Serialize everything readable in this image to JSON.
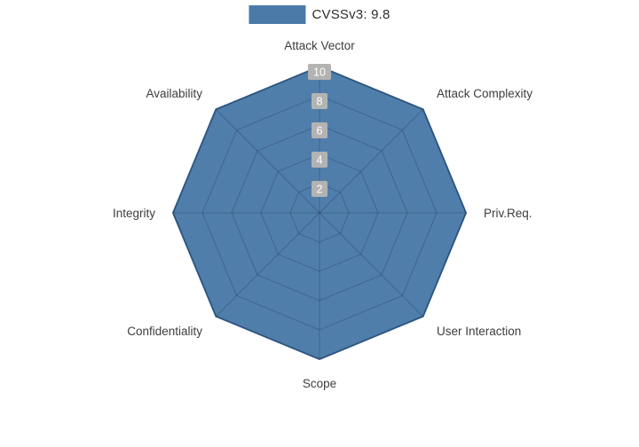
{
  "legend": {
    "label": "CVSSv3: 9.8"
  },
  "colors": {
    "fill": "#4a7aa8",
    "stroke": "#35618f",
    "grid": "#c9c9c9",
    "inner_grid": "rgba(25,45,75,0.30)",
    "tick_bg": "#b3b3b3",
    "tick_text": "#ffffff",
    "label_text": "#3d3d3d"
  },
  "chart_data": {
    "type": "radar",
    "title": "",
    "legend_entries": [
      "CVSSv3: 9.8"
    ],
    "legend_position": "top-center",
    "categories": [
      "Attack Vector",
      "Attack Complexity",
      "Priv.Req.",
      "User Interaction",
      "Scope",
      "Confidentiality",
      "Integrity",
      "Availability"
    ],
    "series": [
      {
        "name": "CVSSv3: 9.8",
        "values": [
          10,
          10,
          10,
          10,
          10,
          10,
          10,
          10
        ]
      }
    ],
    "ticks": [
      2,
      4,
      6,
      8,
      10
    ],
    "range": [
      0,
      10
    ],
    "grid": "polygonal",
    "start_axis": "top",
    "direction": "clockwise"
  }
}
